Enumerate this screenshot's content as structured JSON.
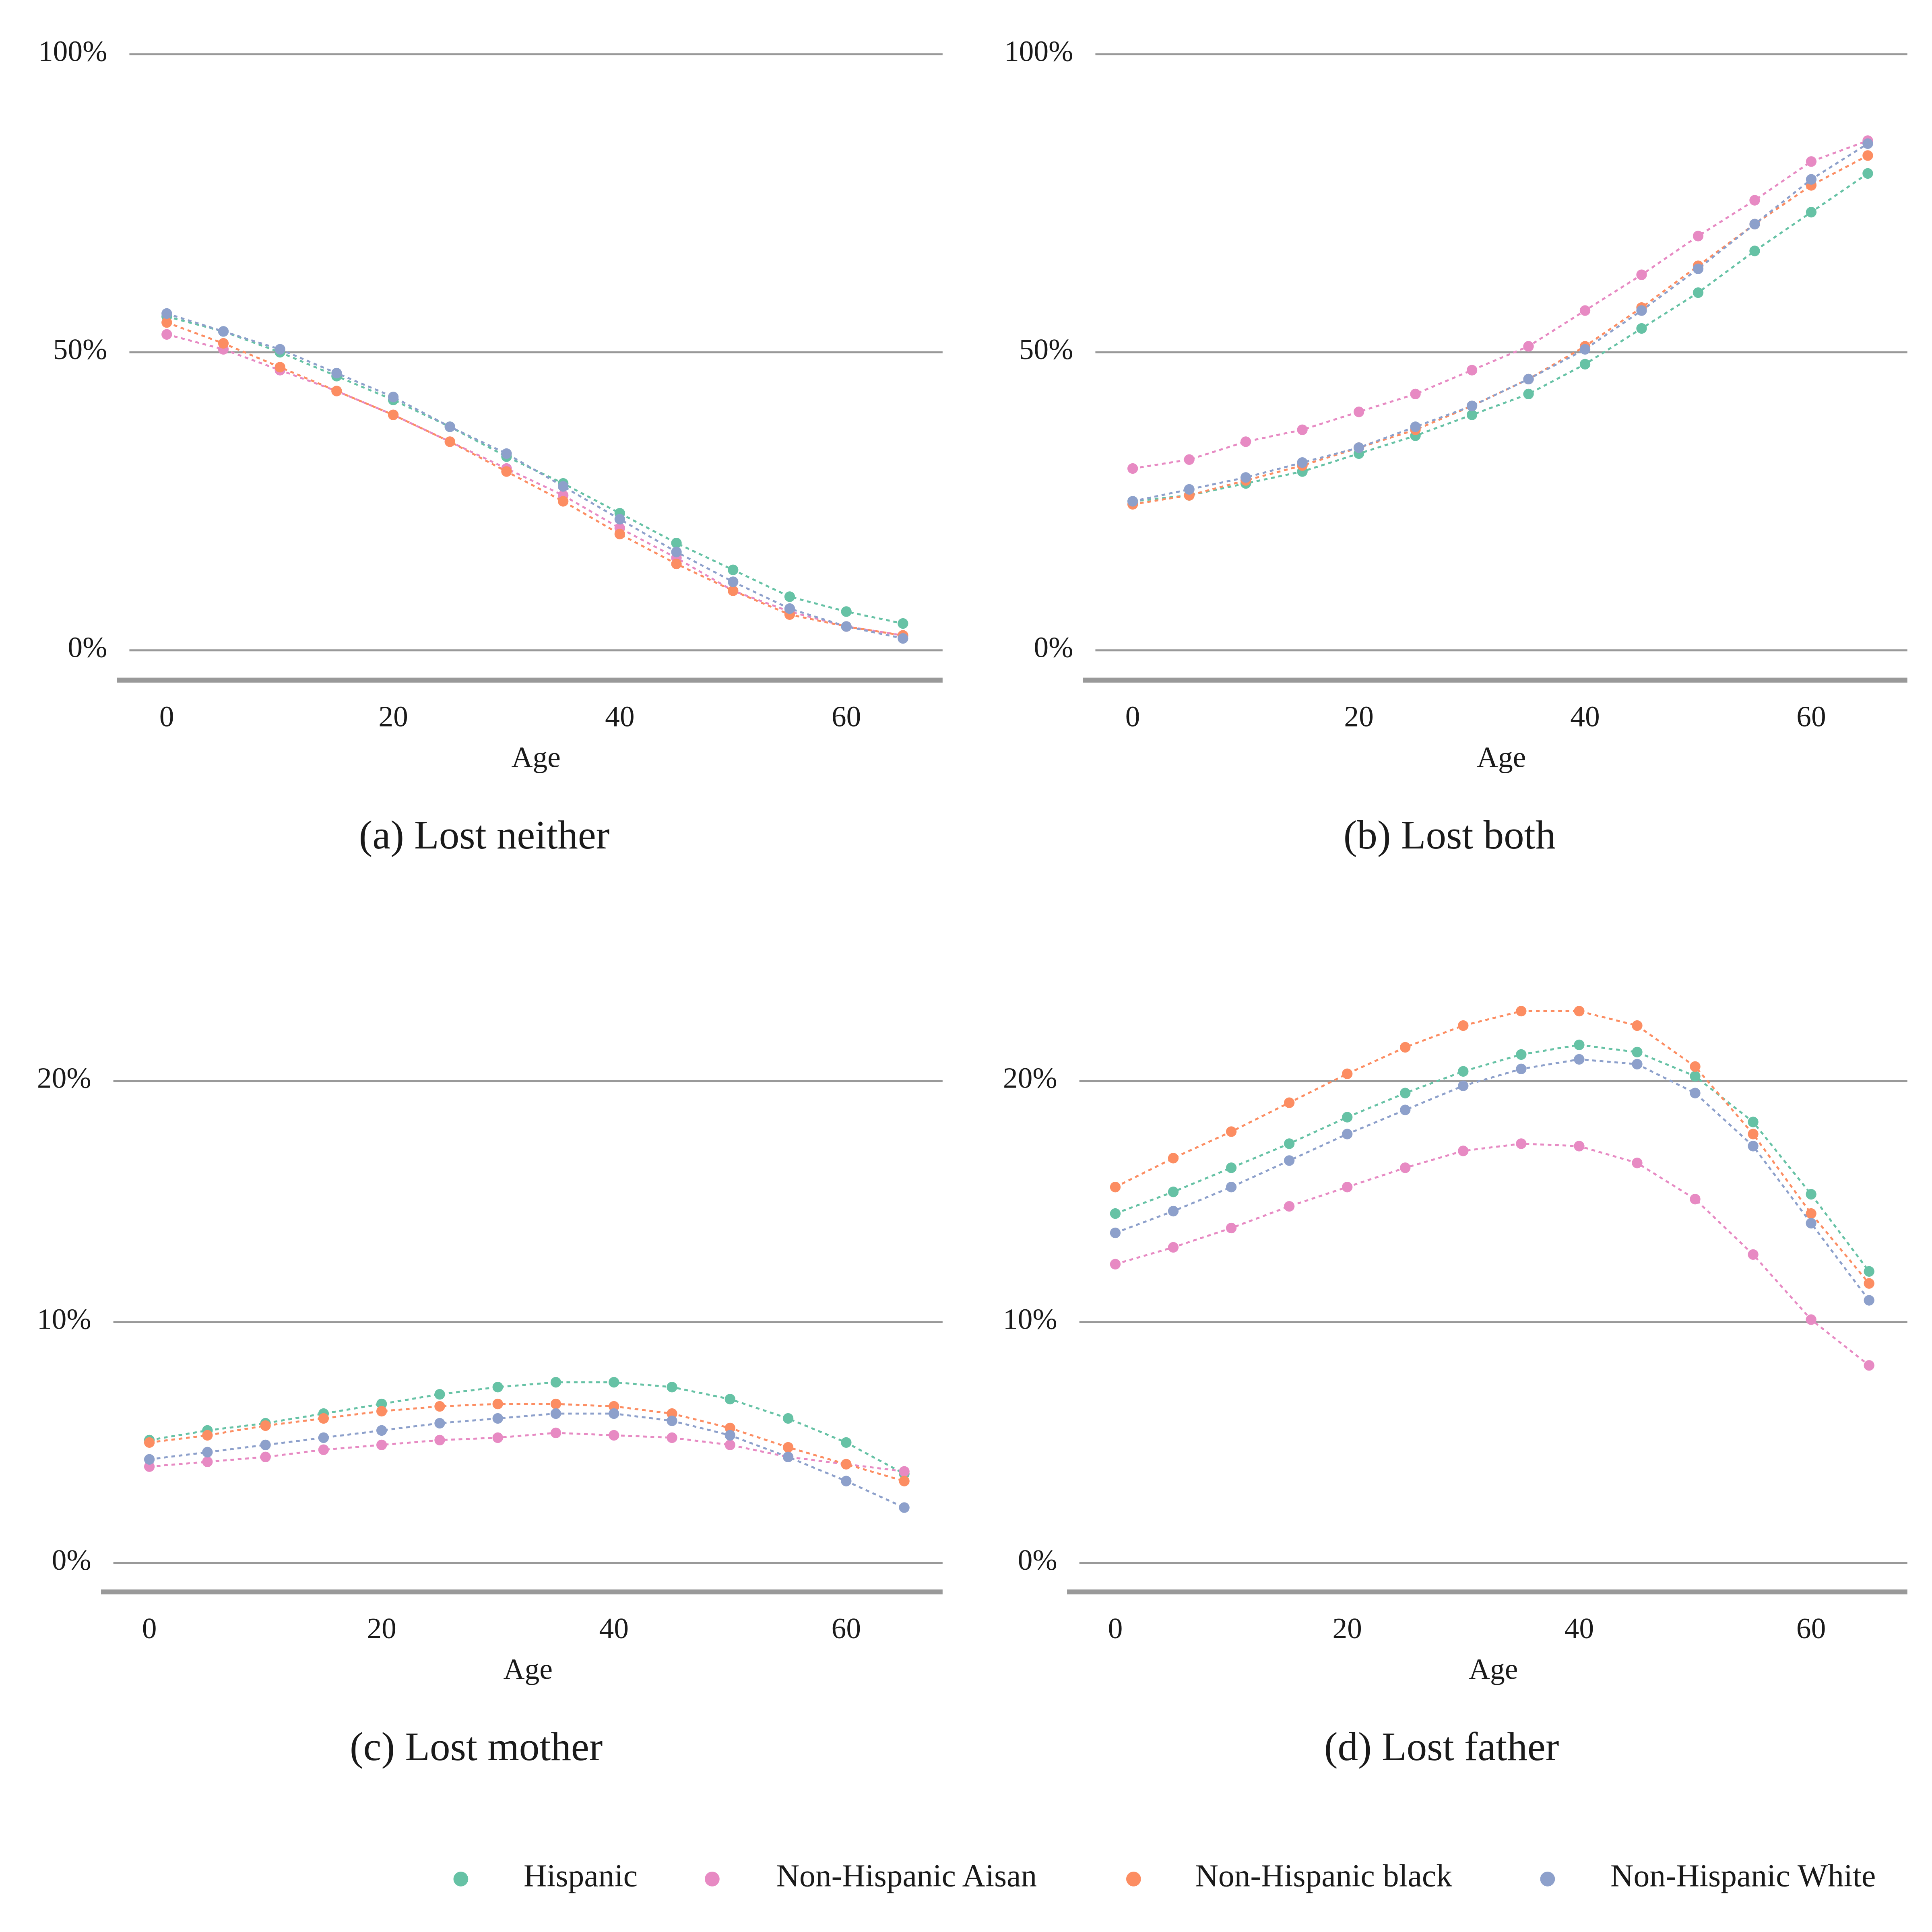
{
  "chart_data": [
    {
      "type": "scatter",
      "title": "(a) Lost neither",
      "x_label": "Age",
      "x": [
        0,
        5,
        10,
        15,
        20,
        25,
        30,
        35,
        40,
        45,
        50,
        55,
        60,
        65
      ],
      "xlim": [
        -3.3,
        68.5
      ],
      "xticks": [
        0,
        20,
        40,
        60
      ],
      "ylim": [
        -5,
        100
      ],
      "yticks": [
        {
          "value": 0,
          "label": "0%"
        },
        {
          "value": 50,
          "label": "50%"
        },
        {
          "value": 100,
          "label": "100%"
        }
      ],
      "grid": true,
      "series": [
        {
          "name": "Hispanic",
          "color": "#66c2a5",
          "values": [
            56,
            53.5,
            50,
            46,
            42,
            37.5,
            32.5,
            28,
            23,
            18,
            13.5,
            9,
            6.5,
            4.5
          ]
        },
        {
          "name": "Non-Hispanic Aisan",
          "color": "#e78ac3",
          "values": [
            53,
            50.5,
            47,
            43.5,
            39.5,
            35,
            30.5,
            26,
            20.5,
            15.5,
            10,
            6.5,
            4,
            2.5
          ]
        },
        {
          "name": "Non-Hispanic black",
          "color": "#fc8d62",
          "values": [
            55,
            51.5,
            47.5,
            43.5,
            39.5,
            35,
            30,
            25,
            19.5,
            14.5,
            10,
            6,
            4,
            2.5
          ]
        },
        {
          "name": "Non-Hispanic White",
          "color": "#8da0cb",
          "values": [
            56.5,
            53.5,
            50.5,
            46.5,
            42.5,
            37.5,
            33,
            27.5,
            22,
            16.5,
            11.5,
            7,
            4,
            2
          ]
        }
      ]
    },
    {
      "type": "scatter",
      "title": "(b) Lost both",
      "x_label": "Age",
      "x": [
        0,
        5,
        10,
        15,
        20,
        25,
        30,
        35,
        40,
        45,
        50,
        55,
        60,
        65
      ],
      "xlim": [
        -3.3,
        68.5
      ],
      "xticks": [
        0,
        20,
        40,
        60
      ],
      "ylim": [
        -5,
        100
      ],
      "yticks": [
        {
          "value": 0,
          "label": "0%"
        },
        {
          "value": 50,
          "label": "50%"
        },
        {
          "value": 100,
          "label": "100%"
        }
      ],
      "grid": true,
      "series": [
        {
          "name": "Hispanic",
          "color": "#66c2a5",
          "values": [
            25,
            26,
            28,
            30,
            33,
            36,
            39.5,
            43,
            48,
            54,
            60,
            67,
            73.5,
            80
          ]
        },
        {
          "name": "Non-Hispanic Aisan",
          "color": "#e78ac3",
          "values": [
            30.5,
            32,
            35,
            37,
            40,
            43,
            47,
            51,
            57,
            63,
            69.5,
            75.5,
            82,
            85.5
          ]
        },
        {
          "name": "Non-Hispanic black",
          "color": "#fc8d62",
          "values": [
            24.5,
            26,
            28.5,
            31,
            34,
            37,
            41,
            45.5,
            51,
            57.5,
            64.5,
            71.5,
            78,
            83
          ]
        },
        {
          "name": "Non-Hispanic White",
          "color": "#8da0cb",
          "values": [
            25,
            27,
            29,
            31.5,
            34,
            37.5,
            41,
            45.5,
            50.5,
            57,
            64,
            71.5,
            79,
            85
          ]
        }
      ]
    },
    {
      "type": "scatter",
      "title": "(c) Lost mother",
      "x_label": "Age",
      "x": [
        0,
        5,
        10,
        15,
        20,
        25,
        30,
        35,
        40,
        45,
        50,
        55,
        60,
        65
      ],
      "xlim": [
        -3.1,
        68.3
      ],
      "xticks": [
        0,
        20,
        40,
        60
      ],
      "ylim": [
        -1.2,
        26
      ],
      "yticks": [
        {
          "value": 0,
          "label": "0%"
        },
        {
          "value": 10,
          "label": "10%"
        },
        {
          "value": 20,
          "label": "20%"
        }
      ],
      "grid": true,
      "series": [
        {
          "name": "Hispanic",
          "color": "#66c2a5",
          "values": [
            5.1,
            5.5,
            5.8,
            6.2,
            6.6,
            7.0,
            7.3,
            7.5,
            7.5,
            7.3,
            6.8,
            6.0,
            5.0,
            3.7
          ]
        },
        {
          "name": "Non-Hispanic Aisan",
          "color": "#e78ac3",
          "values": [
            4.0,
            4.2,
            4.4,
            4.7,
            4.9,
            5.1,
            5.2,
            5.4,
            5.3,
            5.2,
            4.9,
            4.4,
            4.1,
            3.8
          ]
        },
        {
          "name": "Non-Hispanic black",
          "color": "#fc8d62",
          "values": [
            5.0,
            5.3,
            5.7,
            6.0,
            6.3,
            6.5,
            6.6,
            6.6,
            6.5,
            6.2,
            5.6,
            4.8,
            4.1,
            3.4
          ]
        },
        {
          "name": "Non-Hispanic White",
          "color": "#8da0cb",
          "values": [
            4.3,
            4.6,
            4.9,
            5.2,
            5.5,
            5.8,
            6.0,
            6.2,
            6.2,
            5.9,
            5.3,
            4.4,
            3.4,
            2.3
          ]
        }
      ]
    },
    {
      "type": "scatter",
      "title": "(d) Lost father",
      "x_label": "Age",
      "x": [
        0,
        5,
        10,
        15,
        20,
        25,
        30,
        35,
        40,
        45,
        50,
        55,
        60,
        65
      ],
      "xlim": [
        -3.1,
        68.3
      ],
      "xticks": [
        0,
        20,
        40,
        60
      ],
      "ylim": [
        -1.2,
        26
      ],
      "yticks": [
        {
          "value": 0,
          "label": "0%"
        },
        {
          "value": 10,
          "label": "10%"
        },
        {
          "value": 20,
          "label": "20%"
        }
      ],
      "grid": true,
      "series": [
        {
          "name": "Hispanic",
          "color": "#66c2a5",
          "values": [
            14.5,
            15.4,
            16.4,
            17.4,
            18.5,
            19.5,
            20.4,
            21.1,
            21.5,
            21.2,
            20.2,
            18.3,
            15.3,
            12.1
          ]
        },
        {
          "name": "Non-Hispanic Aisan",
          "color": "#e78ac3",
          "values": [
            12.4,
            13.1,
            13.9,
            14.8,
            15.6,
            16.4,
            17.1,
            17.4,
            17.3,
            16.6,
            15.1,
            12.8,
            10.1,
            8.2
          ]
        },
        {
          "name": "Non-Hispanic black",
          "color": "#fc8d62",
          "values": [
            15.6,
            16.8,
            17.9,
            19.1,
            20.3,
            21.4,
            22.3,
            22.9,
            22.9,
            22.3,
            20.6,
            17.8,
            14.5,
            11.6
          ]
        },
        {
          "name": "Non-Hispanic White",
          "color": "#8da0cb",
          "values": [
            13.7,
            14.6,
            15.6,
            16.7,
            17.8,
            18.8,
            19.8,
            20.5,
            20.9,
            20.7,
            19.5,
            17.3,
            14.1,
            10.9
          ]
        }
      ]
    }
  ]
}
